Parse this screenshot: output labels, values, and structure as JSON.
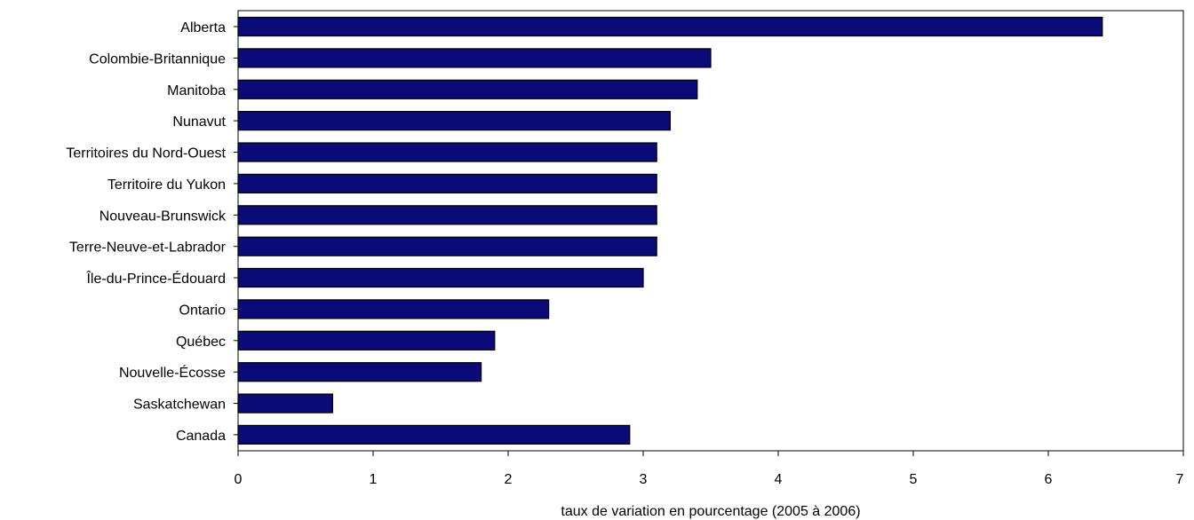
{
  "chart_data": {
    "type": "bar",
    "orientation": "horizontal",
    "categories": [
      "Alberta",
      "Colombie-Britannique",
      "Manitoba",
      "Nunavut",
      "Territoires du Nord-Ouest",
      "Territoire du Yukon",
      "Nouveau-Brunswick",
      "Terre-Neuve-et-Labrador",
      "Île-du-Prince-Édouard",
      "Ontario",
      "Québec",
      "Nouvelle-Écosse",
      "Saskatchewan",
      "Canada"
    ],
    "values": [
      6.4,
      3.5,
      3.4,
      3.2,
      3.1,
      3.1,
      3.1,
      3.1,
      3.0,
      2.3,
      1.9,
      1.8,
      0.7,
      2.9
    ],
    "xlabel": "taux de variation en pourcentage (2005 à 2006)",
    "ylabel": "",
    "xlim": [
      0,
      7
    ],
    "xticks": [
      "0",
      "1",
      "2",
      "3",
      "4",
      "5",
      "6",
      "7"
    ],
    "grid": false,
    "bar_color": "#0a0a78"
  }
}
